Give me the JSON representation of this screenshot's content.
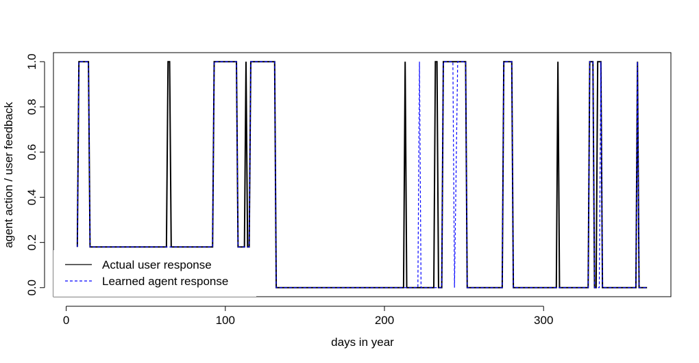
{
  "chart_data": {
    "type": "line",
    "xlabel": "days in year",
    "ylabel": "agent action / user feedback",
    "xlim": [
      -8,
      380
    ],
    "ylim": [
      -0.04,
      1.04
    ],
    "xticks": [
      0,
      100,
      200,
      300
    ],
    "yticks": [
      0.0,
      0.2,
      0.4,
      0.6,
      0.8,
      1.0
    ],
    "xtick_labels": [
      "0",
      "100",
      "200",
      "300"
    ],
    "ytick_labels": [
      "0.0",
      "0.2",
      "0.4",
      "0.6",
      "0.8",
      "1.0"
    ],
    "grid": false,
    "legend_position": "bottom-left",
    "series": [
      {
        "name": "Actual user response",
        "color": "#000000",
        "dash": "solid",
        "points": [
          [
            7,
            0.18
          ],
          [
            8,
            1
          ],
          [
            14,
            1
          ],
          [
            15,
            0.18
          ],
          [
            63,
            0.18
          ],
          [
            64,
            1
          ],
          [
            65,
            1
          ],
          [
            66,
            0.18
          ],
          [
            92,
            0.18
          ],
          [
            93,
            1
          ],
          [
            107,
            1
          ],
          [
            108,
            0.18
          ],
          [
            112,
            0.18
          ],
          [
            113,
            1
          ],
          [
            114,
            0.18
          ],
          [
            115,
            0.18
          ],
          [
            116,
            1
          ],
          [
            131,
            1
          ],
          [
            132,
            0
          ],
          [
            212,
            0
          ],
          [
            213,
            1
          ],
          [
            214,
            0
          ],
          [
            231,
            0
          ],
          [
            232,
            1
          ],
          [
            233,
            1
          ],
          [
            234,
            0
          ],
          [
            236,
            0
          ],
          [
            237,
            1
          ],
          [
            251,
            1
          ],
          [
            252,
            0
          ],
          [
            274,
            0
          ],
          [
            275,
            1
          ],
          [
            280,
            1
          ],
          [
            281,
            0
          ],
          [
            308,
            0
          ],
          [
            309,
            1
          ],
          [
            310,
            0
          ],
          [
            328,
            0
          ],
          [
            329,
            1
          ],
          [
            331,
            1
          ],
          [
            332,
            0
          ],
          [
            333,
            0
          ],
          [
            334,
            1
          ],
          [
            336,
            1
          ],
          [
            337,
            0
          ],
          [
            358,
            0
          ],
          [
            359,
            1
          ],
          [
            360,
            0
          ],
          [
            365,
            0
          ]
        ]
      },
      {
        "name": "Learned agent response",
        "color": "#0000ff",
        "dash": "dashed",
        "points": [
          [
            7,
            0.18
          ],
          [
            8,
            1
          ],
          [
            14,
            1
          ],
          [
            15,
            0.18
          ],
          [
            92,
            0.18
          ],
          [
            93,
            1
          ],
          [
            107,
            1
          ],
          [
            108,
            0.18
          ],
          [
            115,
            0.18
          ],
          [
            116,
            1
          ],
          [
            131,
            1
          ],
          [
            132,
            0
          ],
          [
            221,
            0
          ],
          [
            222,
            1
          ],
          [
            223,
            0
          ],
          [
            236,
            0
          ],
          [
            237,
            1
          ],
          [
            243,
            1
          ],
          [
            244,
            0
          ],
          [
            246,
            1
          ],
          [
            251,
            1
          ],
          [
            252,
            0
          ],
          [
            274,
            0
          ],
          [
            275,
            1
          ],
          [
            280,
            1
          ],
          [
            281,
            0
          ],
          [
            328,
            0
          ],
          [
            329,
            1
          ],
          [
            331,
            1
          ],
          [
            332,
            0
          ],
          [
            335,
            0
          ],
          [
            336,
            1
          ],
          [
            337,
            0
          ],
          [
            358,
            0
          ],
          [
            359,
            1
          ],
          [
            360,
            0
          ],
          [
            365,
            0
          ]
        ]
      }
    ]
  }
}
